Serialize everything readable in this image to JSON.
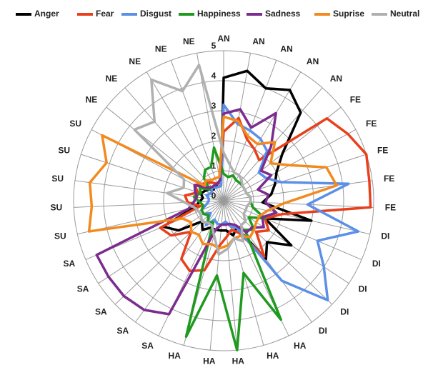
{
  "chart_data": {
    "type": "radar",
    "categories": [
      "AN",
      "AN",
      "AN",
      "AN",
      "AN",
      "FE",
      "FE",
      "FE",
      "FE",
      "FE",
      "DI",
      "DI",
      "DI",
      "DI",
      "DI",
      "HA",
      "HA",
      "HA",
      "HA",
      "HA",
      "SA",
      "SA",
      "SA",
      "SA",
      "SA",
      "SU",
      "SU",
      "SU",
      "SU",
      "SU",
      "NE",
      "NE",
      "NE",
      "NE",
      "NE"
    ],
    "ylim": [
      0,
      5
    ],
    "yticks": [
      0,
      1,
      2,
      3,
      4,
      5
    ],
    "grid": true,
    "legend": "top",
    "series": [
      {
        "name": "Anger",
        "color": "#000000",
        "values": [
          4.1,
          4.4,
          4.0,
          4.3,
          3.9,
          2.5,
          2.0,
          1.8,
          1.6,
          1.3,
          3.0,
          1.5,
          2.7,
          2.0,
          2.4,
          1.0,
          1.2,
          1.0,
          1.0,
          1.0,
          1.0,
          1.2,
          1.0,
          1.8,
          2.2,
          1.0,
          0.8,
          0.7,
          0.8,
          0.7,
          0.6,
          0.5,
          0.6,
          0.5,
          0.5
        ]
      },
      {
        "name": "Fear",
        "color": "#e8401c",
        "values": [
          2.3,
          2.8,
          2.2,
          2.0,
          1.8,
          4.4,
          4.7,
          5.0,
          4.9,
          4.9,
          2.0,
          1.5,
          1.8,
          1.5,
          2.3,
          1.2,
          1.0,
          1.2,
          1.5,
          2.4,
          2.6,
          2.4,
          1.5,
          2.1,
          2.3,
          0.8,
          1.2,
          1.3,
          0.9,
          1.1,
          0.9,
          0.8,
          0.7,
          0.6,
          0.6
        ]
      },
      {
        "name": "Disgust",
        "color": "#5b8fe8",
        "values": [
          3.2,
          2.6,
          2.5,
          2.4,
          2.2,
          1.5,
          1.6,
          2.0,
          4.2,
          2.8,
          4.6,
          3.4,
          4.0,
          4.8,
          3.3,
          1.0,
          0.9,
          0.7,
          0.8,
          0.8,
          0.7,
          1.0,
          0.6,
          0.8,
          0.8,
          0.6,
          0.5,
          0.5,
          0.6,
          0.5,
          0.5,
          0.6,
          0.5,
          0.5,
          0.5
        ]
      },
      {
        "name": "Happiness",
        "color": "#1e9a1e",
        "values": [
          0.9,
          0.8,
          0.9,
          0.8,
          0.8,
          0.8,
          0.8,
          0.8,
          0.9,
          0.9,
          1.0,
          1.5,
          1.0,
          1.4,
          1.2,
          4.4,
          2.5,
          5.0,
          2.5,
          4.7,
          0.8,
          0.9,
          0.7,
          0.8,
          0.8,
          0.7,
          0.8,
          1.0,
          0.8,
          0.9,
          0.6,
          1.0,
          1.2,
          1.2,
          1.8
        ]
      },
      {
        "name": "Sadness",
        "color": "#7b2c8e",
        "values": [
          2.9,
          3.1,
          2.6,
          3.4,
          2.4,
          1.6,
          1.8,
          1.2,
          1.5,
          1.4,
          1.8,
          1.4,
          1.6,
          1.3,
          1.3,
          0.9,
          0.8,
          0.8,
          0.8,
          1.0,
          4.2,
          4.5,
          4.6,
          4.6,
          4.6,
          1.2,
          1.0,
          0.9,
          1.0,
          1.1,
          0.7,
          0.6,
          0.6,
          0.6,
          0.7
        ]
      },
      {
        "name": "Suprise",
        "color": "#f28a1e",
        "values": [
          2.8,
          2.7,
          2.3,
          2.2,
          2.6,
          2.0,
          2.5,
          3.6,
          3.8,
          2.0,
          1.5,
          1.3,
          1.3,
          1.4,
          1.5,
          1.3,
          1.3,
          1.5,
          1.6,
          1.5,
          1.6,
          1.4,
          1.5,
          1.3,
          1.5,
          4.6,
          4.4,
          4.5,
          4.1,
          4.6,
          0.8,
          0.9,
          0.8,
          0.8,
          0.8
        ]
      },
      {
        "name": "Neutral",
        "color": "#b0b0b0",
        "values": [
          1.6,
          1.2,
          1.0,
          1.0,
          0.9,
          0.8,
          0.8,
          0.8,
          0.9,
          0.9,
          0.8,
          0.8,
          0.8,
          1.0,
          1.0,
          1.5,
          1.3,
          1.6,
          1.8,
          1.2,
          0.9,
          0.9,
          1.0,
          0.9,
          0.9,
          1.0,
          1.3,
          1.9,
          1.4,
          1.5,
          3.8,
          3.5,
          4.7,
          3.9,
          4.6
        ]
      }
    ]
  }
}
